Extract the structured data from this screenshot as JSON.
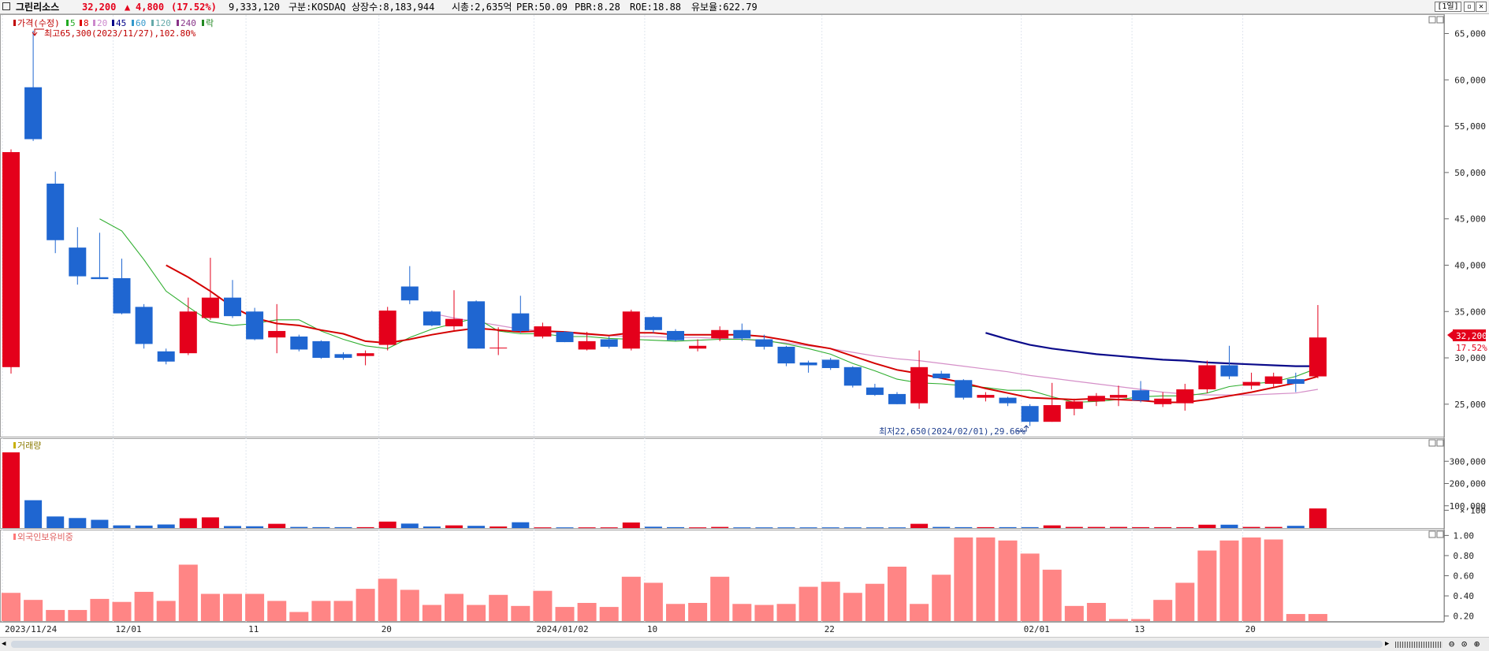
{
  "header": {
    "stock_name": "그린리소스",
    "price": "32,200",
    "change_arrow": "▲",
    "change": "4,800",
    "change_pct": "(17.52%)",
    "volume": "9,333,120",
    "market": "구분:KOSDAQ",
    "shares": "상장수:8,183,944",
    "market_cap": "시총:2,635억",
    "per": "PER:50.09",
    "pbr": "PBR:8.28",
    "roe": "ROE:18.88",
    "float_ratio": "유보율:622.79",
    "period_button": "[1일]",
    "colors": {
      "up": "#e4001b",
      "down": "#1f66d1"
    }
  },
  "price_panel": {
    "legend": [
      {
        "text": "가격(수정)",
        "color": "#c00000"
      },
      {
        "text": "5",
        "color": "#22aa22"
      },
      {
        "text": "8",
        "color": "#dd0000"
      },
      {
        "text": "20",
        "color": "#cc88cc"
      },
      {
        "text": "45",
        "color": "#000088"
      },
      {
        "text": "60",
        "color": "#3399cc"
      },
      {
        "text": "120",
        "color": "#66aaaa"
      },
      {
        "text": "240",
        "color": "#883388"
      },
      {
        "text": "락",
        "color": "#228822"
      }
    ],
    "high_annotation": "최고65,300(2023/11/27),102.80%",
    "low_annotation": "최저22,650(2024/02/01),29.66%",
    "current_price_label": "32,200",
    "current_pct_label": "17.52%",
    "y_ticks": [
      "65,000",
      "60,000",
      "55,000",
      "50,000",
      "45,000",
      "40,000",
      "35,000",
      "30,000",
      "25,000"
    ]
  },
  "volume_panel": {
    "title": "거래량",
    "y_ticks": [
      "300,000",
      "200,000",
      "100,000",
      "× 100"
    ]
  },
  "foreign_panel": {
    "title": "외국인보유비중",
    "y_ticks": [
      "1.00",
      "0.80",
      "0.60",
      "0.40",
      "0.20"
    ]
  },
  "x_axis_labels": [
    "2023/11/24",
    "12/01",
    "11",
    "20",
    "2024/01/02",
    "10",
    "22",
    "02/01",
    "13",
    "20"
  ],
  "chart_data": [
    {
      "type": "candlestick",
      "ylim": [
        21500,
        67000
      ],
      "candles": [
        {
          "o": 29000,
          "h": 52500,
          "l": 28300,
          "c": 52200
        },
        {
          "o": 59200,
          "h": 65300,
          "l": 53400,
          "c": 53600
        },
        {
          "o": 48800,
          "h": 50100,
          "l": 41300,
          "c": 42700
        },
        {
          "o": 41900,
          "h": 44100,
          "l": 37900,
          "c": 38800
        },
        {
          "o": 38700,
          "h": 43500,
          "l": 38500,
          "c": 38500
        },
        {
          "o": 38600,
          "h": 40700,
          "l": 34700,
          "c": 34800
        },
        {
          "o": 35500,
          "h": 35800,
          "l": 31000,
          "c": 31500
        },
        {
          "o": 30700,
          "h": 31000,
          "l": 29300,
          "c": 29600
        },
        {
          "o": 30500,
          "h": 36500,
          "l": 30300,
          "c": 35000
        },
        {
          "o": 34300,
          "h": 40800,
          "l": 34100,
          "c": 36500
        },
        {
          "o": 36500,
          "h": 38400,
          "l": 34300,
          "c": 34500
        },
        {
          "o": 35000,
          "h": 35400,
          "l": 31900,
          "c": 32000
        },
        {
          "o": 32200,
          "h": 35800,
          "l": 30500,
          "c": 32900
        },
        {
          "o": 32300,
          "h": 32500,
          "l": 30700,
          "c": 30900
        },
        {
          "o": 31800,
          "h": 31900,
          "l": 29900,
          "c": 30000
        },
        {
          "o": 30400,
          "h": 30600,
          "l": 29800,
          "c": 30000
        },
        {
          "o": 30200,
          "h": 30800,
          "l": 29200,
          "c": 30500
        },
        {
          "o": 31400,
          "h": 35500,
          "l": 30800,
          "c": 35100
        },
        {
          "o": 37700,
          "h": 39900,
          "l": 35800,
          "c": 36200
        },
        {
          "o": 35000,
          "h": 35100,
          "l": 33400,
          "c": 33500
        },
        {
          "o": 33400,
          "h": 37300,
          "l": 33000,
          "c": 34200
        },
        {
          "o": 36100,
          "h": 36200,
          "l": 31000,
          "c": 31000
        },
        {
          "o": 31100,
          "h": 33300,
          "l": 30300,
          "c": 31100
        },
        {
          "o": 34800,
          "h": 36700,
          "l": 32700,
          "c": 32900
        },
        {
          "o": 32300,
          "h": 33800,
          "l": 32100,
          "c": 33400
        },
        {
          "o": 32800,
          "h": 32900,
          "l": 31700,
          "c": 31700
        },
        {
          "o": 30900,
          "h": 32800,
          "l": 30800,
          "c": 31800
        },
        {
          "o": 32000,
          "h": 32300,
          "l": 31000,
          "c": 31200
        },
        {
          "o": 31000,
          "h": 35200,
          "l": 30800,
          "c": 35000
        },
        {
          "o": 34400,
          "h": 34500,
          "l": 32700,
          "c": 33000
        },
        {
          "o": 32900,
          "h": 33100,
          "l": 31800,
          "c": 31900
        },
        {
          "o": 31000,
          "h": 32000,
          "l": 30700,
          "c": 31300
        },
        {
          "o": 32100,
          "h": 33400,
          "l": 31800,
          "c": 33000
        },
        {
          "o": 33000,
          "h": 33700,
          "l": 31800,
          "c": 32100
        },
        {
          "o": 32000,
          "h": 32500,
          "l": 30900,
          "c": 31200
        },
        {
          "o": 31200,
          "h": 31300,
          "l": 29100,
          "c": 29400
        },
        {
          "o": 29500,
          "h": 29700,
          "l": 28400,
          "c": 29200
        },
        {
          "o": 29800,
          "h": 30000,
          "l": 28700,
          "c": 28900
        },
        {
          "o": 29000,
          "h": 29100,
          "l": 26800,
          "c": 27000
        },
        {
          "o": 26800,
          "h": 27200,
          "l": 25900,
          "c": 26000
        },
        {
          "o": 26100,
          "h": 26300,
          "l": 25000,
          "c": 25000
        },
        {
          "o": 25100,
          "h": 30800,
          "l": 24500,
          "c": 29000
        },
        {
          "o": 28300,
          "h": 28600,
          "l": 27700,
          "c": 27800
        },
        {
          "o": 27600,
          "h": 27700,
          "l": 25500,
          "c": 25700
        },
        {
          "o": 25700,
          "h": 26300,
          "l": 25300,
          "c": 26000
        },
        {
          "o": 25700,
          "h": 25800,
          "l": 24800,
          "c": 25100
        },
        {
          "o": 24800,
          "h": 25000,
          "l": 22650,
          "c": 23100
        },
        {
          "o": 23100,
          "h": 27300,
          "l": 23100,
          "c": 24900
        },
        {
          "o": 24500,
          "h": 25600,
          "l": 23800,
          "c": 25300
        },
        {
          "o": 25300,
          "h": 26200,
          "l": 24800,
          "c": 25900
        },
        {
          "o": 25700,
          "h": 27000,
          "l": 24800,
          "c": 26000
        },
        {
          "o": 26500,
          "h": 27500,
          "l": 25200,
          "c": 25400
        },
        {
          "o": 25000,
          "h": 26300,
          "l": 24700,
          "c": 25600
        },
        {
          "o": 25100,
          "h": 27200,
          "l": 24300,
          "c": 26600
        },
        {
          "o": 26600,
          "h": 29700,
          "l": 26200,
          "c": 29200
        },
        {
          "o": 29200,
          "h": 31300,
          "l": 27700,
          "c": 28000
        },
        {
          "o": 27000,
          "h": 28400,
          "l": 26600,
          "c": 27400
        },
        {
          "o": 27200,
          "h": 28400,
          "l": 26800,
          "c": 28000
        },
        {
          "o": 27700,
          "h": 28400,
          "l": 26300,
          "c": 27200
        },
        {
          "o": 28000,
          "h": 35700,
          "l": 27800,
          "c": 32200
        }
      ],
      "ma5": [
        null,
        null,
        null,
        null,
        45000,
        43700,
        40600,
        37200,
        35500,
        33900,
        33500,
        33700,
        34100,
        34100,
        32900,
        32000,
        31300,
        31000,
        32200,
        33100,
        33700,
        34300,
        32900,
        32600,
        32600,
        32300,
        32300,
        32100,
        32000,
        31900,
        31800,
        31900,
        32000,
        32000,
        31900,
        31500,
        31000,
        30400,
        29400,
        28600,
        27700,
        27300,
        27200,
        27000,
        26800,
        26500,
        26500,
        25800,
        25200,
        25300,
        25500,
        25800,
        25900,
        25900,
        26200,
        26900,
        27200,
        27400,
        28000,
        28900
      ],
      "ma8": [
        null,
        null,
        null,
        null,
        null,
        null,
        null,
        40000,
        38700,
        37200,
        35500,
        34300,
        33700,
        33500,
        33000,
        32600,
        31800,
        31600,
        32000,
        32500,
        32900,
        33200,
        33000,
        32800,
        32900,
        32800,
        32600,
        32400,
        32700,
        32700,
        32500,
        32500,
        32500,
        32500,
        32300,
        31900,
        31400,
        31000,
        30200,
        29400,
        28700,
        28300,
        27800,
        27300,
        26700,
        26200,
        25700,
        25600,
        25500,
        25600,
        25500,
        25400,
        25200,
        25200,
        25500,
        25900,
        26300,
        26800,
        27300,
        28000
      ],
      "ma20": [
        null,
        null,
        null,
        null,
        null,
        null,
        null,
        null,
        null,
        null,
        null,
        null,
        null,
        null,
        null,
        null,
        null,
        null,
        null,
        34800,
        34300,
        33900,
        33500,
        33100,
        32900,
        32700,
        32500,
        32400,
        32300,
        32300,
        32200,
        32200,
        32100,
        32000,
        31800,
        31600,
        31300,
        31000,
        30600,
        30200,
        29900,
        29700,
        29400,
        29100,
        28800,
        28500,
        28100,
        27800,
        27500,
        27200,
        26900,
        26600,
        26300,
        26100,
        26000,
        26000,
        26000,
        26100,
        26200,
        26600
      ],
      "ma45": [
        null,
        null,
        null,
        null,
        null,
        null,
        null,
        null,
        null,
        null,
        null,
        null,
        null,
        null,
        null,
        null,
        null,
        null,
        null,
        null,
        null,
        null,
        null,
        null,
        null,
        null,
        null,
        null,
        null,
        null,
        null,
        null,
        null,
        null,
        null,
        null,
        null,
        null,
        null,
        null,
        null,
        null,
        null,
        null,
        32700,
        32000,
        31400,
        31000,
        30700,
        30400,
        30200,
        30000,
        29800,
        29700,
        29500,
        29400,
        29300,
        29200,
        29100,
        29100
      ]
    },
    {
      "type": "bar",
      "title": "거래량",
      "ylim": [
        0,
        400000
      ],
      "values": [
        340000,
        125000,
        52000,
        45000,
        37000,
        12000,
        11000,
        16000,
        44000,
        48000,
        9000,
        8000,
        19000,
        5000,
        4000,
        4000,
        4000,
        29000,
        20000,
        7000,
        12000,
        10000,
        7000,
        26000,
        3000,
        3000,
        3000,
        3000,
        25000,
        6000,
        4000,
        3000,
        5000,
        3000,
        3000,
        3000,
        3000,
        3000,
        3000,
        3000,
        3000,
        19000,
        5000,
        4000,
        4000,
        4000,
        4000,
        12000,
        5000,
        5000,
        5000,
        4000,
        4000,
        4000,
        15000,
        15000,
        5000,
        5000,
        10000,
        88000
      ],
      "up": [
        true,
        false,
        false,
        false,
        false,
        false,
        false,
        false,
        true,
        true,
        false,
        false,
        true,
        false,
        false,
        false,
        true,
        true,
        false,
        false,
        true,
        false,
        true,
        false,
        true,
        false,
        true,
        true,
        true,
        false,
        false,
        true,
        true,
        false,
        false,
        false,
        false,
        false,
        false,
        false,
        false,
        true,
        false,
        false,
        true,
        false,
        false,
        true,
        true,
        true,
        true,
        true,
        true,
        true,
        true,
        false,
        true,
        true,
        false,
        true
      ]
    },
    {
      "type": "bar",
      "title": "외국인보유비중",
      "ylim": [
        0.15,
        1.05
      ],
      "values": [
        0.43,
        0.36,
        0.26,
        0.26,
        0.37,
        0.34,
        0.44,
        0.35,
        0.71,
        0.42,
        0.42,
        0.42,
        0.35,
        0.24,
        0.35,
        0.35,
        0.47,
        0.57,
        0.46,
        0.31,
        0.42,
        0.31,
        0.41,
        0.3,
        0.45,
        0.29,
        0.33,
        0.29,
        0.59,
        0.53,
        0.32,
        0.33,
        0.59,
        0.32,
        0.31,
        0.32,
        0.49,
        0.54,
        0.43,
        0.52,
        0.69,
        0.32,
        0.61,
        0.98,
        0.98,
        0.95,
        0.82,
        0.66,
        0.3,
        0.33,
        0.17,
        0.17,
        0.36,
        0.53,
        0.85,
        0.95,
        0.98,
        0.96,
        0.22,
        0.22
      ]
    }
  ]
}
